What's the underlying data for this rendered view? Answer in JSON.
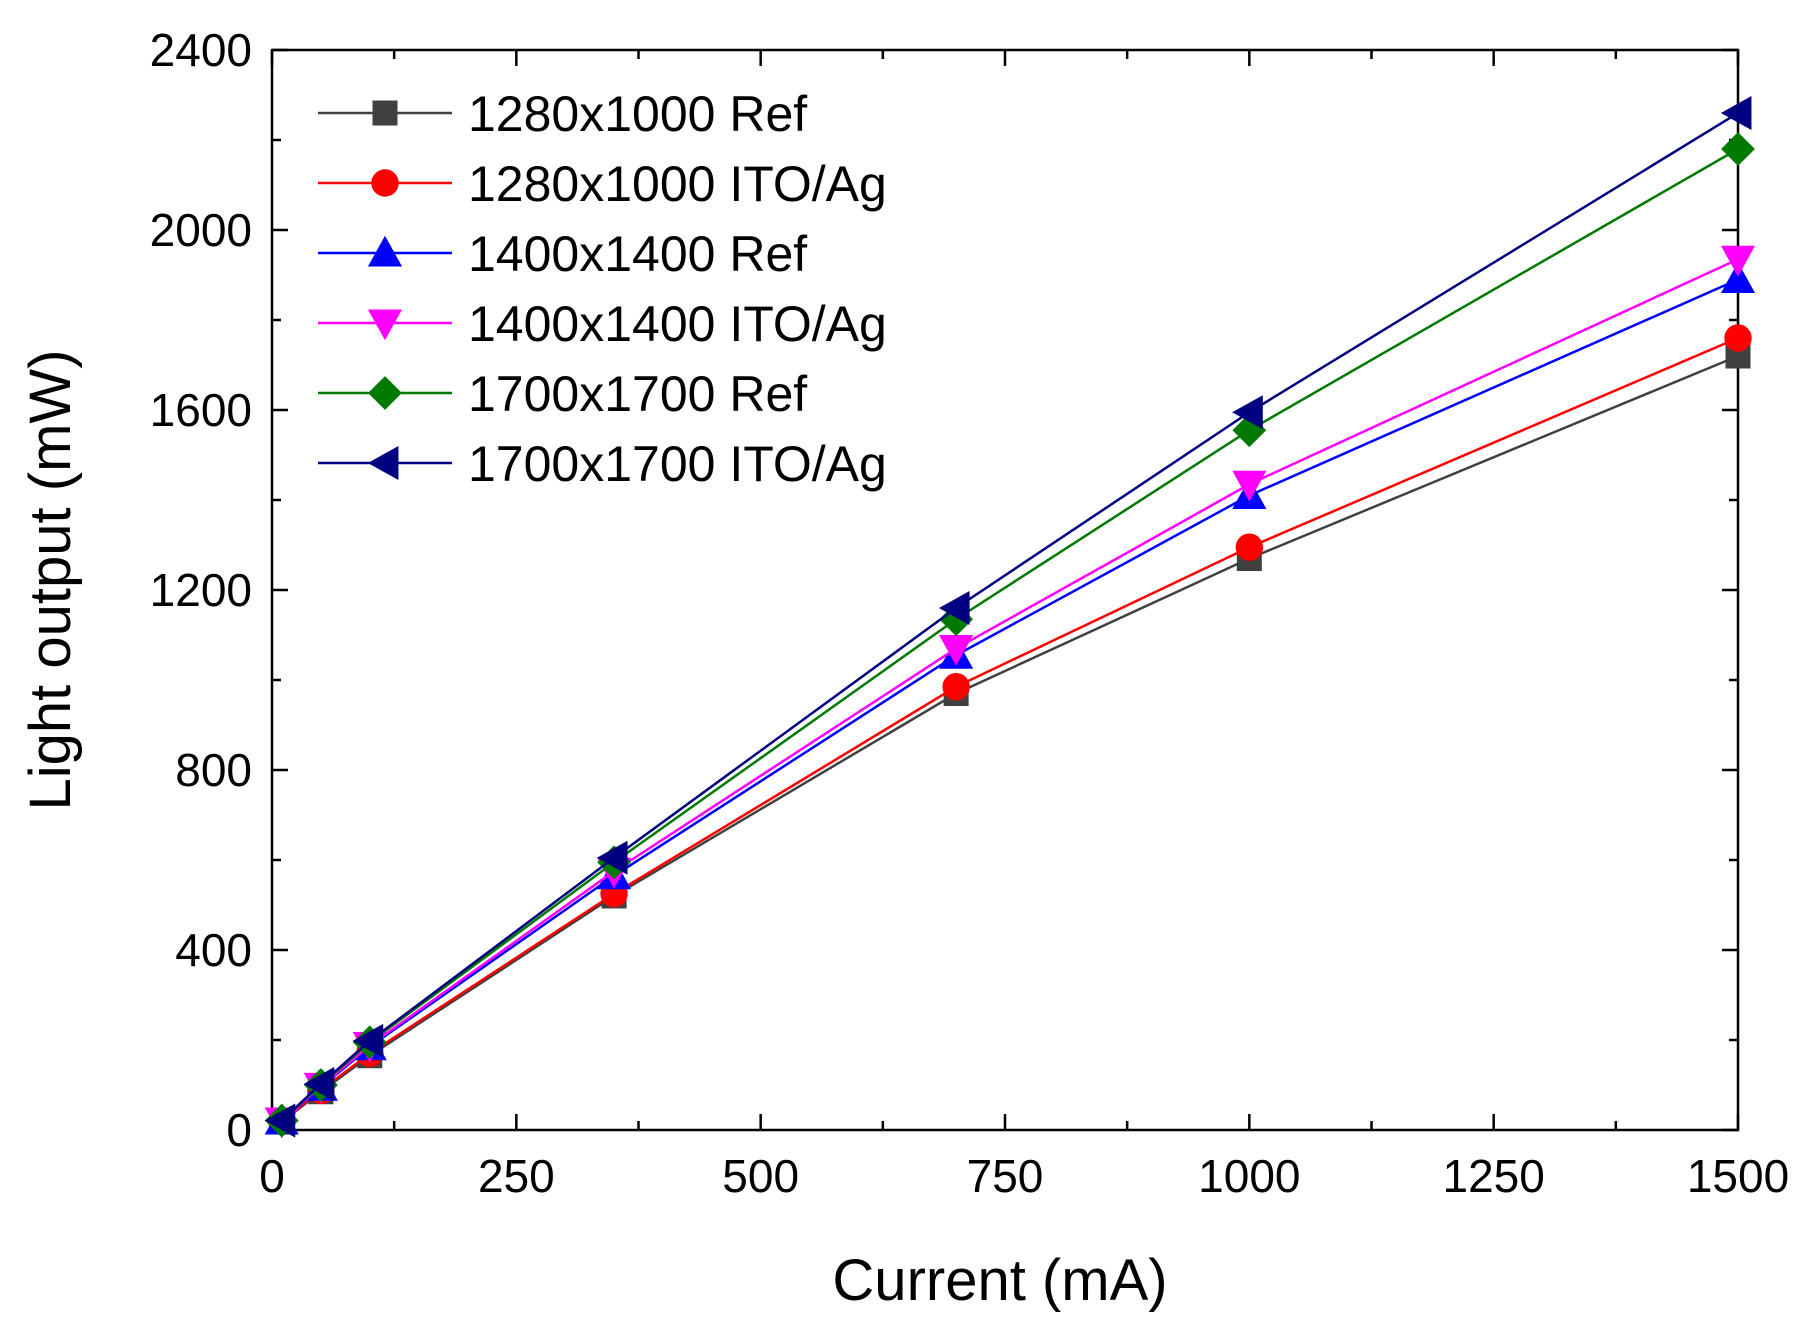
{
  "chart_data": {
    "type": "line",
    "title": "",
    "xlabel": "Current (mA)",
    "ylabel": "Light output (mW)",
    "xlim": [
      0,
      1500
    ],
    "ylim": [
      0,
      2400
    ],
    "x_ticks": [
      0,
      250,
      500,
      750,
      1000,
      1250,
      1500
    ],
    "x_tick_labels": [
      "0",
      "250",
      "500",
      "750",
      "1000",
      "1250",
      "1500"
    ],
    "y_ticks": [
      0,
      400,
      800,
      1200,
      1600,
      2000,
      2400
    ],
    "y_tick_labels": [
      "0",
      "400",
      "800",
      "1200",
      "1600",
      "2000",
      "2400"
    ],
    "grid": false,
    "legend_position": "top-left",
    "x": [
      10,
      50,
      100,
      350,
      700,
      1000,
      1500
    ],
    "series": [
      {
        "name": "1280x1000 Ref",
        "color": "#404040",
        "marker": "square",
        "values": [
          18,
          85,
          165,
          520,
          970,
          1270,
          1720
        ]
      },
      {
        "name": "1280x1000 ITO/Ag",
        "color": "#ff0000",
        "marker": "circle",
        "values": [
          19,
          88,
          170,
          525,
          985,
          1295,
          1760
        ]
      },
      {
        "name": "1400x1400 Ref",
        "color": "#0000ff",
        "marker": "triangle-up",
        "values": [
          20,
          95,
          185,
          565,
          1055,
          1410,
          1890
        ]
      },
      {
        "name": "1400x1400 ITO/Ag",
        "color": "#ff00ff",
        "marker": "triangle-down",
        "values": [
          20,
          97,
          188,
          575,
          1070,
          1435,
          1935
        ]
      },
      {
        "name": "1700x1700 Ref",
        "color": "#007a00",
        "marker": "diamond",
        "values": [
          21,
          100,
          195,
          595,
          1135,
          1555,
          2180
        ]
      },
      {
        "name": "1700x1700 ITO/Ag",
        "color": "#000080",
        "marker": "triangle-left",
        "values": [
          21,
          102,
          198,
          605,
          1160,
          1595,
          2260
        ]
      }
    ]
  }
}
